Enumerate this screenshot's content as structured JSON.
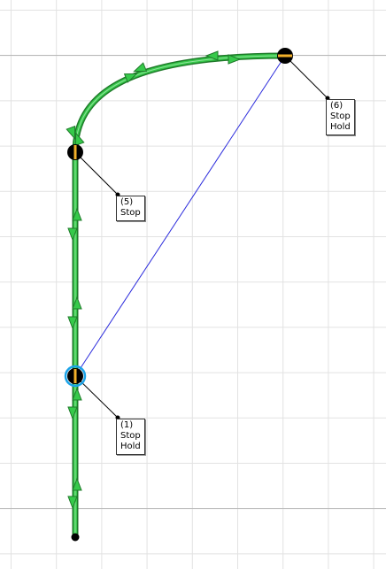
{
  "colors": {
    "grid_major": "#b8b8b8",
    "grid_minor": "#e2e2e2",
    "route_fill": "#36c94a",
    "route_edge": "#1f7a2a",
    "link": "#2c2cdc",
    "node": "#000000",
    "node_bar": "#f2b02a",
    "selected_ring": "#1aa3e8",
    "leader": "#000000"
  },
  "stops": [
    {
      "id": "stop-1",
      "number": "(1)",
      "lines": [
        "Stop",
        "Hold"
      ],
      "selected": true
    },
    {
      "id": "stop-5",
      "number": "(5)",
      "lines": [
        "Stop"
      ],
      "selected": false
    },
    {
      "id": "stop-6",
      "number": "(6)",
      "lines": [
        "Stop",
        "Hold"
      ],
      "selected": false
    }
  ],
  "icons": {
    "direction_arrow": "triangle-arrow-icon",
    "stop_node": "stop-node-icon",
    "route_end": "route-end-dot-icon"
  }
}
